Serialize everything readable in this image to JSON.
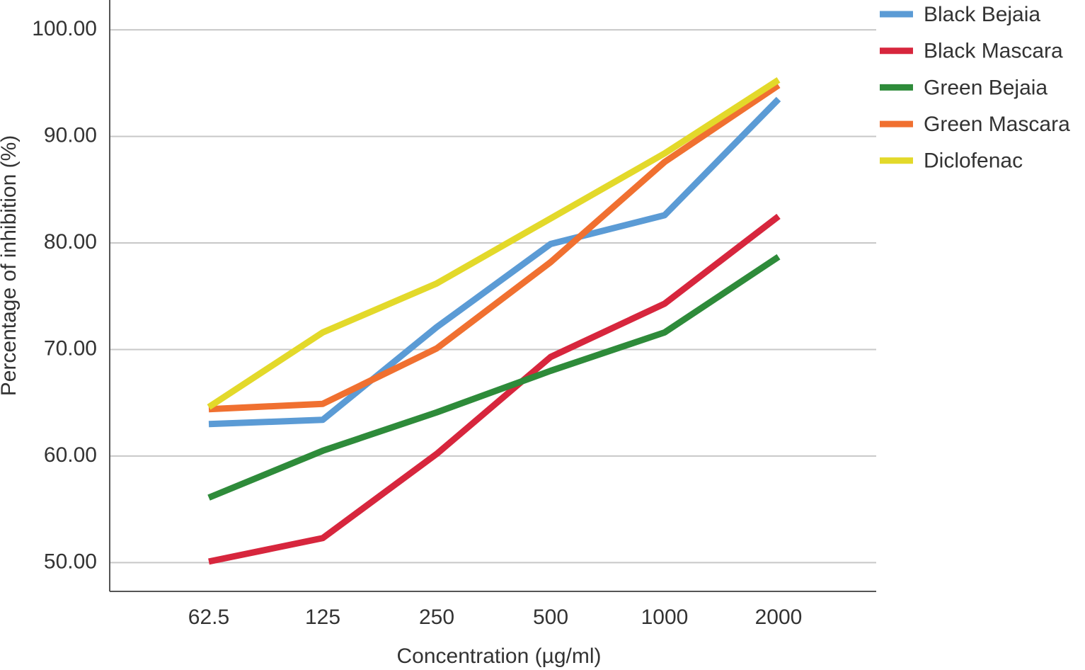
{
  "chart_data": {
    "type": "line",
    "x_label": "Concentration (µg/ml)",
    "y_label": "Percentage of inhibition (%)",
    "categories": [
      "62.5",
      "125",
      "250",
      "500",
      "1000",
      "2000"
    ],
    "series": [
      {
        "name": "Black Bejaia",
        "color": "#5b9bd5",
        "values": [
          63.0,
          63.4,
          72.1,
          79.9,
          82.6,
          93.5
        ]
      },
      {
        "name": "Black Mascara",
        "color": "#d7263d",
        "values": [
          50.1,
          52.3,
          60.2,
          69.3,
          74.3,
          82.5
        ]
      },
      {
        "name": "Green Bejaia",
        "color": "#2e8b3a",
        "values": [
          56.1,
          60.5,
          64.1,
          68.0,
          71.6,
          78.7
        ]
      },
      {
        "name": "Green Mascara",
        "color": "#f07030",
        "values": [
          64.4,
          64.9,
          70.1,
          78.2,
          87.6,
          94.8
        ]
      },
      {
        "name": "Diclofenac",
        "color": "#e3d92a",
        "values": [
          64.6,
          71.6,
          76.2,
          82.3,
          88.4,
          95.3
        ]
      }
    ],
    "ylim": [
      47.3,
      102.8
    ],
    "yticks": [
      {
        "value": 50,
        "label": "50.00"
      },
      {
        "value": 60,
        "label": "60.00"
      },
      {
        "value": 70,
        "label": "70.00"
      },
      {
        "value": 80,
        "label": "80.00"
      },
      {
        "value": 90,
        "label": "90.00"
      },
      {
        "value": 100,
        "label": "100.00"
      }
    ],
    "grid": true,
    "legend": "right"
  }
}
